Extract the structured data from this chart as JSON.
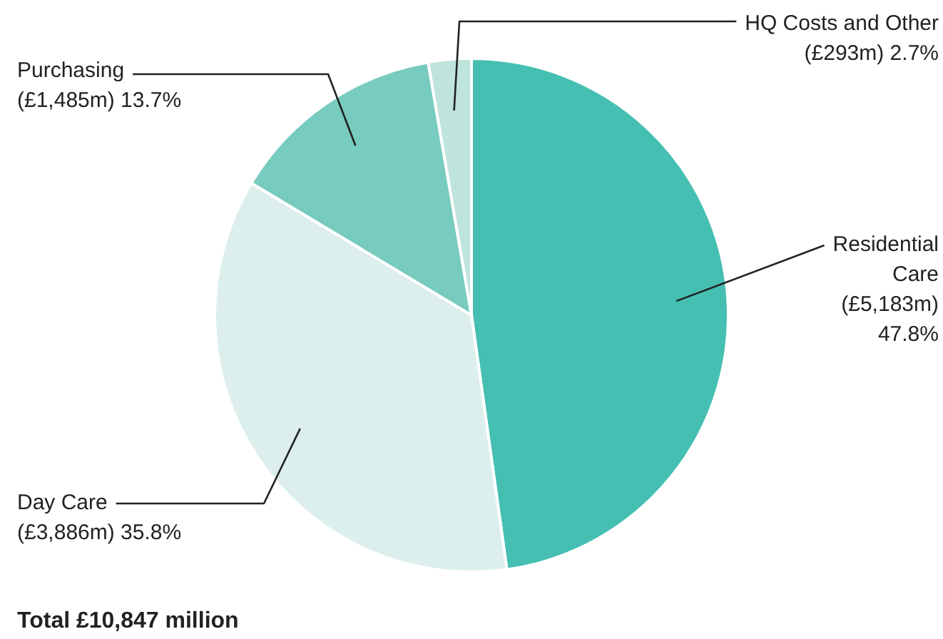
{
  "chart_data": {
    "type": "pie",
    "categories": [
      "Residential Care",
      "Day Care",
      "Purchasing",
      "HQ Costs and Other"
    ],
    "values": [
      47.8,
      35.8,
      13.7,
      2.7
    ],
    "colors": [
      "#45bfb2",
      "#dcefec",
      "#78cbbf",
      "#bfe3dd"
    ],
    "value_labels": [
      "(£5,183m) 47.8%",
      "(£3,886m) 35.8%",
      "(£1,485m) 13.7%",
      "(£293m) 2.7%"
    ],
    "annotations": [
      "Total £10,847 million"
    ],
    "legend": false
  }
}
